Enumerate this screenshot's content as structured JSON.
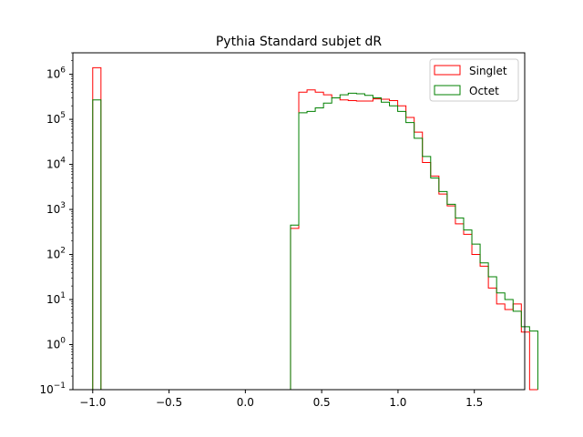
{
  "chart_data": {
    "type": "histogram",
    "title": "Pythia Standard subjet dR",
    "xlabel": "",
    "ylabel": "",
    "xlim": [
      -1.13,
      1.83
    ],
    "ylim": [
      0.1,
      3000000
    ],
    "yscale": "log",
    "grid": false,
    "legend": "top-right",
    "x_ticks": [
      {
        "v": -1.0,
        "label": "−1.0"
      },
      {
        "v": -0.5,
        "label": "−0.5"
      },
      {
        "v": 0.0,
        "label": "0.0"
      },
      {
        "v": 0.5,
        "label": "0.5"
      },
      {
        "v": 1.0,
        "label": "1.0"
      },
      {
        "v": 1.5,
        "label": "1.5"
      }
    ],
    "y_ticks": [
      {
        "v": 0.1,
        "base": "10",
        "exp": "−1"
      },
      {
        "v": 1,
        "base": "10",
        "exp": "0"
      },
      {
        "v": 10,
        "base": "10",
        "exp": "1"
      },
      {
        "v": 100,
        "base": "10",
        "exp": "2"
      },
      {
        "v": 1000,
        "base": "10",
        "exp": "3"
      },
      {
        "v": 10000,
        "base": "10",
        "exp": "4"
      },
      {
        "v": 100000,
        "base": "10",
        "exp": "5"
      },
      {
        "v": 1000000,
        "base": "10",
        "exp": "6"
      }
    ],
    "bin_start": -1.0,
    "bin_width": 0.054,
    "series": [
      {
        "name": "Singlet",
        "color": "#ff0000",
        "values": [
          1400000,
          0.1,
          0.1,
          0.1,
          0.1,
          0.1,
          0.1,
          0.1,
          0.1,
          0.1,
          0.1,
          0.1,
          0.1,
          0.1,
          0.1,
          0.1,
          0.1,
          0.1,
          0.1,
          0.1,
          0.1,
          0.1,
          0.1,
          0.1,
          380,
          400000,
          450000,
          400000,
          350000,
          300000,
          270000,
          260000,
          255000,
          255000,
          285000,
          280000,
          260000,
          200000,
          110000,
          52000,
          11000,
          5500,
          2200,
          1200,
          480,
          280,
          100,
          55,
          18,
          8,
          6,
          8,
          1.9,
          0.1
        ]
      },
      {
        "name": "Octet",
        "color": "#008000",
        "values": [
          270000,
          0.1,
          0.1,
          0.1,
          0.1,
          0.1,
          0.1,
          0.1,
          0.1,
          0.1,
          0.1,
          0.1,
          0.1,
          0.1,
          0.1,
          0.1,
          0.1,
          0.1,
          0.1,
          0.1,
          0.1,
          0.1,
          0.1,
          0.1,
          450,
          140000,
          150000,
          180000,
          230000,
          300000,
          350000,
          380000,
          370000,
          340000,
          300000,
          240000,
          200000,
          150000,
          85000,
          38000,
          15000,
          5000,
          2500,
          1300,
          650,
          350,
          170,
          65,
          32,
          14,
          10,
          5.5,
          2.5,
          2.0
        ]
      }
    ]
  }
}
